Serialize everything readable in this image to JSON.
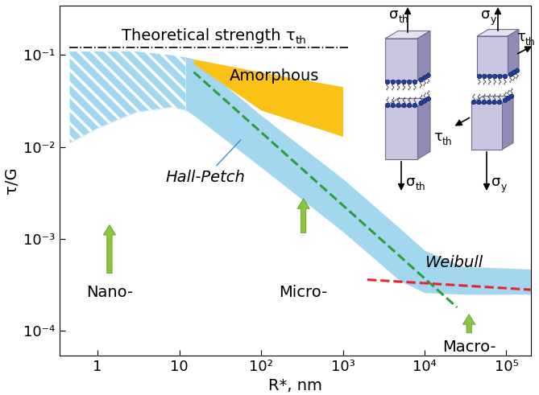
{
  "chart_data": {
    "type": "band",
    "x_label": "R*, nm",
    "y_label": "τ/G",
    "log": true,
    "xlim": [
      0.34,
      200000
    ],
    "ylim": [
      5.4e-05,
      0.34
    ],
    "xticks": [
      1,
      10,
      {
        "value": 100,
        "label": "10²"
      },
      {
        "value": 1000,
        "label": "10³"
      },
      {
        "value": 10000,
        "label": "10⁴"
      },
      {
        "value": 100000,
        "label": "10⁵"
      }
    ],
    "yticks": [
      {
        "value": 0.0001,
        "label": "10⁻⁴"
      },
      {
        "value": 0.001,
        "label": "10⁻³"
      },
      {
        "value": 0.01,
        "label": "10⁻²"
      },
      {
        "value": 0.1,
        "label": "10⁻¹"
      }
    ],
    "bands": [
      {
        "color": "#a3d7f0",
        "x": [
          0.45,
          1,
          3,
          8,
          12,
          15,
          100,
          1000,
          5000,
          10000,
          30000,
          200000
        ],
        "upper": [
          0.11,
          0.11,
          0.11,
          0.1,
          0.095,
          0.09,
          0.022,
          0.0045,
          0.0013,
          0.00075,
          0.0005,
          0.00047
        ],
        "lower": [
          0.011,
          0.016,
          0.024,
          0.027,
          0.025,
          0.022,
          0.006,
          0.0012,
          0.00035,
          0.00026,
          0.00025,
          0.00025
        ],
        "hatched_to": 12
      },
      {
        "name": "Amorphous",
        "color": "#fbc117",
        "x": [
          15,
          100,
          1000
        ],
        "upper": [
          0.09,
          0.065,
          0.045
        ],
        "lower": [
          0.08,
          0.025,
          0.013
        ],
        "label_x": 145,
        "label_y": 0.059
      }
    ],
    "series": [
      {
        "name": "Hall-Petch",
        "type": "line",
        "color": "#2e9e3a",
        "line_style": "dashed",
        "x": [
          15,
          25000
        ],
        "values": [
          0.065,
          0.00018
        ],
        "label_x": 21,
        "label_y": 0.0047,
        "pointer_x": 59,
        "pointer_y": 0.0124
      },
      {
        "name": "Weibull",
        "type": "line",
        "color": "#e8262a",
        "line_style": "dashed",
        "x": [
          2000,
          200000
        ],
        "values": [
          0.00036,
          0.00028
        ],
        "label_x": 23000,
        "label_y": 0.00055
      }
    ],
    "theoretical_strength": {
      "text": "Theoretical strength τ",
      "sub": "th",
      "value": 0.12,
      "x": [
        0.45,
        1150
      ],
      "color": "#000000",
      "line_style": "dashdot"
    },
    "regimes": [
      {
        "label": "Nano-",
        "x": 1.4,
        "arrow_from": 0.0004,
        "arrow_to": 0.0015,
        "label_y": 0.00026
      },
      {
        "label": "Micro-",
        "x": 330,
        "arrow_from": 0.0011,
        "arrow_to": 0.0029,
        "label_y": 0.00026
      },
      {
        "label": "Macro-",
        "x": 35000,
        "arrow_from": 9e-05,
        "arrow_to": 0.00016,
        "label_y": 6.6e-05
      }
    ],
    "schematic": {
      "tension": {
        "top": {
          "text": "σ",
          "sub": "th"
        },
        "bottom": {
          "text": "σ",
          "sub": "th"
        }
      },
      "shear": {
        "top_normal": {
          "text": "σ",
          "sub": "y"
        },
        "top_shear": {
          "text": "τ",
          "sub": "th"
        },
        "bottom_shear": {
          "text": "τ",
          "sub": "th"
        },
        "bottom_normal": {
          "text": "σ",
          "sub": "y"
        }
      }
    }
  }
}
